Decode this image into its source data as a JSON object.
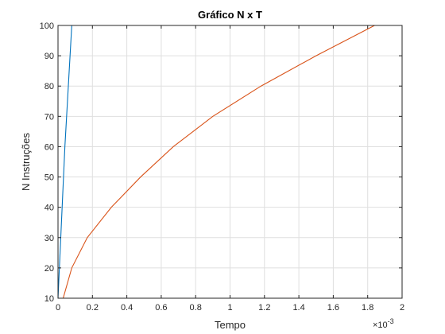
{
  "chart_data": {
    "type": "line",
    "title": "Gráfico N x T",
    "xlabel": "Tempo",
    "ylabel": "N Instruções",
    "x_exponent_label": "×10",
    "x_exponent_value": "-3",
    "xlim": [
      0,
      2
    ],
    "ylim": [
      10,
      100
    ],
    "x_ticks": [
      "0",
      "0.2",
      "0.4",
      "0.6",
      "0.8",
      "1",
      "1.2",
      "1.4",
      "1.6",
      "1.8",
      "2"
    ],
    "y_ticks": [
      "10",
      "20",
      "30",
      "40",
      "50",
      "60",
      "70",
      "80",
      "90",
      "100"
    ],
    "grid": true,
    "series": [
      {
        "color": "#0072bd",
        "x": [
          0.0,
          0.04,
          0.08
        ],
        "y": [
          10,
          60,
          100
        ]
      },
      {
        "color": "#d95319",
        "x": [
          0.03,
          0.08,
          0.17,
          0.31,
          0.48,
          0.67,
          0.9,
          1.18,
          1.5,
          1.84
        ],
        "y": [
          10,
          20,
          30,
          40,
          50,
          60,
          70,
          80,
          90,
          100
        ]
      }
    ]
  }
}
